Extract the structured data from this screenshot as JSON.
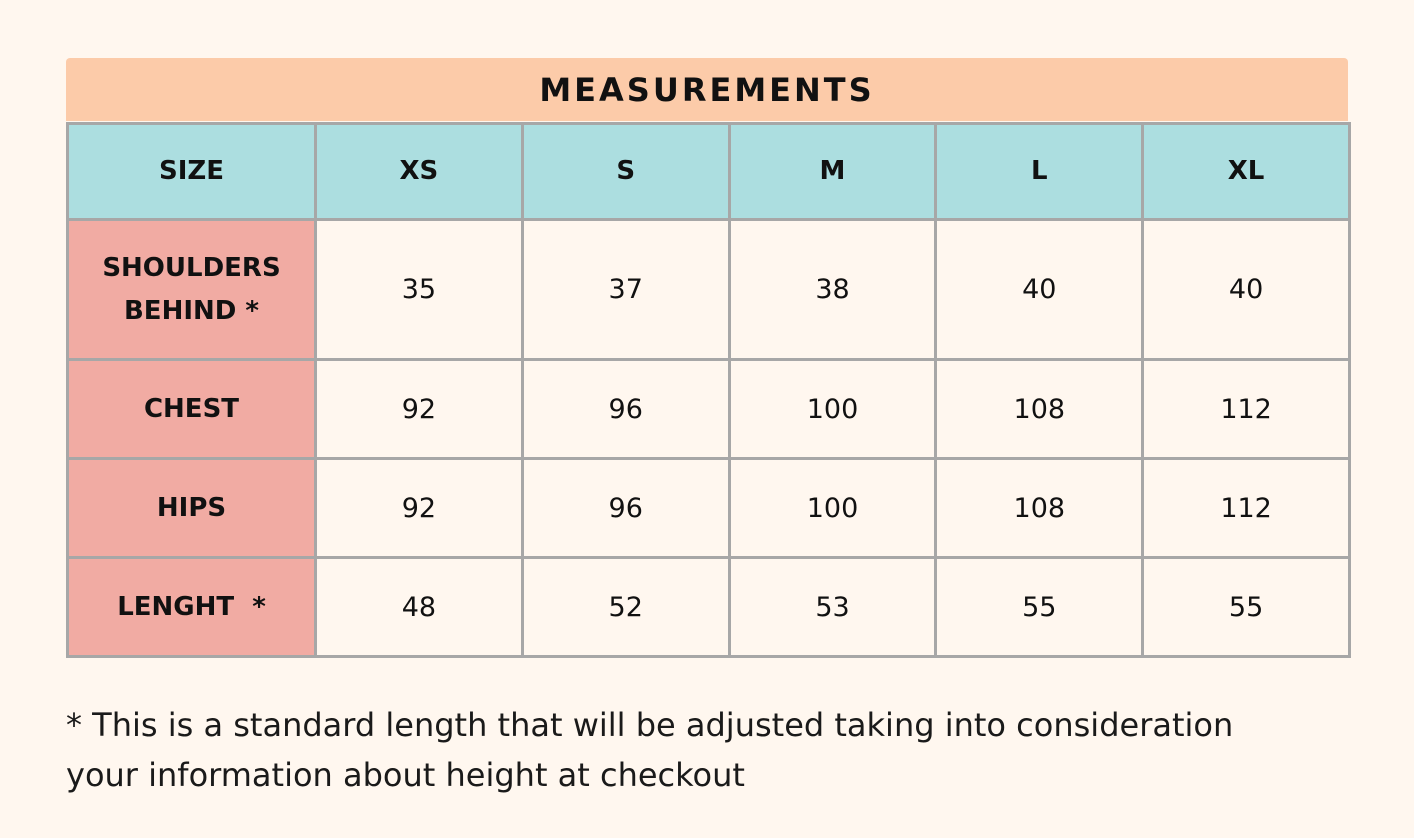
{
  "title": "MEASUREMENTS",
  "table": {
    "corner": "SIZE",
    "sizes": [
      "XS",
      "S",
      "M",
      "L",
      "XL"
    ],
    "rows": [
      {
        "label_lines": [
          "SHOULDERS",
          "BEHIND *"
        ],
        "values": [
          "35",
          "37",
          "38",
          "40",
          "40"
        ]
      },
      {
        "label_lines": [
          "CHEST"
        ],
        "values": [
          "92",
          "96",
          "100",
          "108",
          "112"
        ]
      },
      {
        "label_lines": [
          "HIPS"
        ],
        "values": [
          "92",
          "96",
          "100",
          "108",
          "112"
        ]
      },
      {
        "label_lines": [
          "LENGHT  *"
        ],
        "values": [
          "48",
          "52",
          "53",
          "55",
          "55"
        ]
      }
    ]
  },
  "footnote": {
    "line1": "* This is a standard length that will be adjusted taking into consideration",
    "line2": "your information about height at checkout"
  },
  "colors": {
    "background": "#fff7ef",
    "header": "#fccba9",
    "size_row": "#acdee0",
    "label_column": "#f1aba3",
    "grid": "#a7a7a7"
  }
}
